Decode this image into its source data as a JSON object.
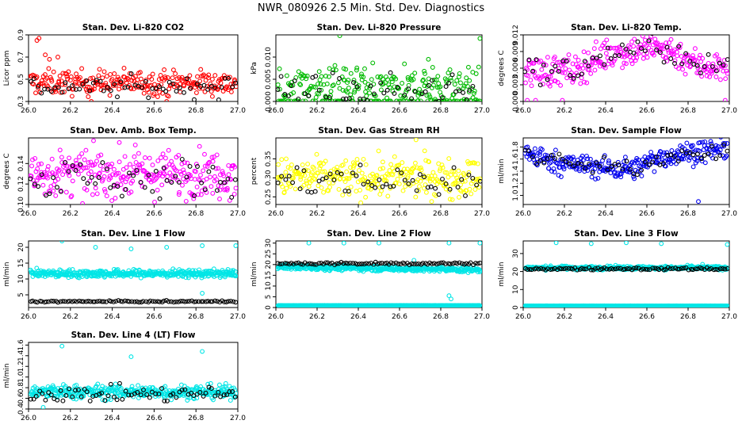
{
  "page": {
    "title": "NWR_080926  2.5 Min. Std. Dev. Diagnostics"
  },
  "colors": {
    "axis": "#000000",
    "red": "#ff0000",
    "green": "#00bb00",
    "magenta": "#ff00ff",
    "yellow": "#ffff00",
    "blue": "#0000ee",
    "cyan": "#00e6e6",
    "black_points": "#000000"
  },
  "chart_data": [
    {
      "type": "scatter",
      "title": "Stan. Dev. Li-820 CO2",
      "ylabel": "Licor ppm",
      "xlim": [
        26.0,
        27.0
      ],
      "ylim": [
        0.3,
        0.9
      ],
      "xticks": [
        26.0,
        26.2,
        26.4,
        26.6,
        26.8,
        27.0
      ],
      "xtick_labels": [
        "26.0",
        "26.2",
        "26.4",
        "26.6",
        "26.8",
        "27.0"
      ],
      "yticks": [
        0.3,
        0.5,
        0.7,
        0.9
      ],
      "ytick_labels": [
        "0.3",
        "0.5",
        "0.7",
        "0.9"
      ],
      "color": "red",
      "series": [
        {
          "name": "colored",
          "color": "red",
          "density": 260,
          "base": 0.47,
          "spread": 0.055,
          "outliers": [
            [
              26.04,
              0.85
            ],
            [
              26.05,
              0.87
            ],
            [
              26.08,
              0.72
            ],
            [
              26.14,
              0.7
            ],
            [
              26.1,
              0.68
            ],
            [
              26.3,
              0.3
            ],
            [
              26.66,
              0.3
            ]
          ]
        },
        {
          "name": "black",
          "color": "black_points",
          "density": 60,
          "base": 0.43,
          "spread": 0.045,
          "outliers": []
        }
      ]
    },
    {
      "type": "scatter",
      "title": "Stan. Dev. Li-820 Pressure",
      "ylabel": "kPa",
      "xlim": [
        26.0,
        27.0
      ],
      "ylim": [
        0.0,
        0.015
      ],
      "xticks": [
        26.0,
        26.2,
        26.4,
        26.6,
        26.8,
        27.0
      ],
      "xtick_labels": [
        "26.0",
        "26.2",
        "26.4",
        "26.6",
        "26.8",
        "27.0"
      ],
      "yticks": [
        0.0,
        0.005,
        0.01
      ],
      "ytick_labels": [
        "0.000",
        "0.005",
        "0.010"
      ],
      "color": "green",
      "series": [
        {
          "name": "colored",
          "color": "green",
          "density": 300,
          "base": 0.0035,
          "spread": 0.0022,
          "band_low": 0.0001,
          "outliers": [
            [
              26.31,
              0.0148
            ],
            [
              26.74,
              0.0095
            ],
            [
              26.99,
              0.0142
            ]
          ]
        },
        {
          "name": "black",
          "color": "black_points",
          "density": 60,
          "base": 0.002,
          "spread": 0.0018,
          "outliers": []
        }
      ]
    },
    {
      "type": "scatter",
      "title": "Stan. Dev. Li-820 Temp.",
      "ylabel": "degrees C",
      "xlim": [
        26.0,
        27.0
      ],
      "ylim": [
        0.0,
        0.012
      ],
      "xticks": [
        26.0,
        26.2,
        26.4,
        26.6,
        26.8,
        27.0
      ],
      "xtick_labels": [
        "26.0",
        "26.2",
        "26.4",
        "26.6",
        "26.8",
        "27.0"
      ],
      "yticks": [
        0.0,
        0.003,
        0.006,
        0.009,
        0.012
      ],
      "ytick_labels": [
        "0.000",
        "0.003",
        "0.006",
        "0.009",
        "0.012"
      ],
      "color": "magenta",
      "trend": [
        [
          26.0,
          0.0055
        ],
        [
          26.25,
          0.0055
        ],
        [
          26.4,
          0.0085
        ],
        [
          26.6,
          0.0095
        ],
        [
          26.7,
          0.0095
        ],
        [
          26.85,
          0.0065
        ],
        [
          27.0,
          0.006
        ]
      ],
      "series": [
        {
          "name": "colored",
          "color": "magenta",
          "density": 280,
          "spread": 0.0014,
          "outliers": [
            [
              26.02,
              0.0002
            ],
            [
              26.06,
              0.0002
            ],
            [
              26.19,
              0.0002
            ],
            [
              26.98,
              0.0002
            ]
          ]
        },
        {
          "name": "black",
          "color": "black_points",
          "density": 55,
          "spread": 0.0012,
          "outliers": []
        }
      ]
    },
    {
      "type": "scatter",
      "title": "Stan. Dev. Amb. Box Temp.",
      "ylabel": "degrees C",
      "xlim": [
        26.0,
        27.0
      ],
      "ylim": [
        0.1,
        0.165
      ],
      "xticks": [
        26.0,
        26.2,
        26.4,
        26.6,
        26.8,
        27.0
      ],
      "xtick_labels": [
        "26.0",
        "26.2",
        "26.4",
        "26.6",
        "26.8",
        "27.0"
      ],
      "yticks": [
        0.1,
        0.12,
        0.14
      ],
      "ytick_labels": [
        "0.10",
        "0.12",
        "0.14"
      ],
      "color": "magenta",
      "series": [
        {
          "name": "colored",
          "color": "magenta",
          "density": 300,
          "base": 0.13,
          "spread": 0.011,
          "outliers": []
        },
        {
          "name": "black",
          "color": "black_points",
          "density": 55,
          "base": 0.125,
          "spread": 0.01,
          "outliers": []
        }
      ]
    },
    {
      "type": "scatter",
      "title": "Stan. Dev. Gas Stream RH",
      "ylabel": "percent",
      "xlim": [
        26.0,
        27.0
      ],
      "ylim": [
        0.23,
        0.405
      ],
      "xticks": [
        26.0,
        26.2,
        26.4,
        26.6,
        26.8,
        27.0
      ],
      "xtick_labels": [
        "26.0",
        "26.2",
        "26.4",
        "26.6",
        "26.8",
        "27.0"
      ],
      "yticks": [
        0.25,
        0.3,
        0.35
      ],
      "ytick_labels": [
        "0.25",
        "0.30",
        "0.35"
      ],
      "color": "yellow",
      "series": [
        {
          "name": "colored",
          "color": "yellow",
          "density": 300,
          "base": 0.3,
          "spread": 0.025,
          "outliers": [
            [
              26.68,
              0.4
            ]
          ]
        },
        {
          "name": "black",
          "color": "black_points",
          "density": 55,
          "base": 0.29,
          "spread": 0.022,
          "outliers": []
        }
      ]
    },
    {
      "type": "scatter",
      "title": "Stan. Dev. Sample Flow",
      "ylabel": "ml/min",
      "xlim": [
        26.0,
        27.0
      ],
      "ylim": [
        0.85,
        1.95
      ],
      "xticks": [
        26.0,
        26.2,
        26.4,
        26.6,
        26.8,
        27.0
      ],
      "xtick_labels": [
        "26.0",
        "26.2",
        "26.4",
        "26.6",
        "26.8",
        "27.0"
      ],
      "yticks": [
        1.0,
        1.2,
        1.4,
        1.6,
        1.8
      ],
      "ytick_labels": [
        "1.0",
        "1.2",
        "1.4",
        "1.6",
        "1.8"
      ],
      "color": "blue",
      "trend": [
        [
          26.0,
          1.72
        ],
        [
          26.15,
          1.55
        ],
        [
          26.4,
          1.45
        ],
        [
          26.55,
          1.45
        ],
        [
          26.65,
          1.62
        ],
        [
          26.8,
          1.7
        ],
        [
          27.0,
          1.78
        ]
      ],
      "series": [
        {
          "name": "colored",
          "color": "blue",
          "density": 300,
          "spread": 0.09,
          "outliers": [
            [
              26.85,
              0.9
            ]
          ]
        },
        {
          "name": "black",
          "color": "black_points",
          "density": 55,
          "spread": 0.07,
          "outliers": []
        }
      ]
    },
    {
      "type": "scatter",
      "title": "Stan. Dev. Line 1 Flow",
      "ylabel": "ml/min",
      "xlim": [
        26.0,
        27.0
      ],
      "ylim": [
        1.0,
        22.0
      ],
      "xticks": [
        26.0,
        26.2,
        26.4,
        26.6,
        26.8,
        27.0
      ],
      "xtick_labels": [
        "26.0",
        "26.2",
        "26.4",
        "26.6",
        "26.8",
        "27.0"
      ],
      "yticks": [
        5,
        10,
        15,
        20
      ],
      "ytick_labels": [
        "5",
        "10",
        "15",
        "20"
      ],
      "color": "cyan",
      "series": [
        {
          "name": "colored",
          "color": "cyan",
          "density": 420,
          "base": 11.7,
          "spread": 0.6,
          "outliers": [
            [
              26.16,
              22.0
            ],
            [
              26.32,
              20.0
            ],
            [
              26.49,
              19.5
            ],
            [
              26.66,
              20.0
            ],
            [
              26.83,
              20.5
            ],
            [
              26.99,
              20.5
            ],
            [
              26.83,
              5.5
            ]
          ]
        },
        {
          "name": "black",
          "color": "black_points",
          "density": 90,
          "base": 2.9,
          "spread": 0.12,
          "outliers": []
        }
      ]
    },
    {
      "type": "scatter",
      "title": "Stan. Dev. Line 2 Flow",
      "ylabel": "ml/min",
      "xlim": [
        26.0,
        27.0
      ],
      "ylim": [
        0.0,
        31.0
      ],
      "xticks": [
        26.0,
        26.2,
        26.4,
        26.6,
        26.8,
        27.0
      ],
      "xtick_labels": [
        "26.0",
        "26.2",
        "26.4",
        "26.6",
        "26.8",
        "27.0"
      ],
      "yticks": [
        0,
        5,
        10,
        15,
        20,
        25,
        30
      ],
      "ytick_labels": [
        "0",
        "5",
        "10",
        "15",
        "20",
        "25",
        "30"
      ],
      "color": "cyan",
      "trend": [
        [
          26.0,
          19.0
        ],
        [
          27.0,
          17.5
        ]
      ],
      "series": [
        {
          "name": "colored",
          "color": "cyan",
          "density": 420,
          "spread": 0.6,
          "low_band": 1.0,
          "outliers": [
            [
              26.16,
              30.0
            ],
            [
              26.33,
              30.0
            ],
            [
              26.5,
              30.0
            ],
            [
              26.67,
              22.0
            ],
            [
              26.84,
              30.0
            ],
            [
              26.99,
              30.0
            ],
            [
              26.84,
              5.5
            ],
            [
              26.85,
              4.0
            ]
          ]
        },
        {
          "name": "black",
          "color": "black_points",
          "density": 90,
          "base": 20.5,
          "spread": 0.3,
          "outliers": []
        }
      ]
    },
    {
      "type": "scatter",
      "title": "Stan. Dev. Line 3 Flow",
      "ylabel": "ml/min",
      "xlim": [
        26.0,
        27.0
      ],
      "ylim": [
        0.0,
        37.0
      ],
      "xticks": [
        26.0,
        26.2,
        26.4,
        26.6,
        26.8,
        27.0
      ],
      "xtick_labels": [
        "26.0",
        "26.2",
        "26.4",
        "26.6",
        "26.8",
        "27.0"
      ],
      "yticks": [
        0,
        10,
        20,
        30
      ],
      "ytick_labels": [
        "0",
        "10",
        "20",
        "30"
      ],
      "color": "cyan",
      "series": [
        {
          "name": "colored",
          "color": "cyan",
          "density": 420,
          "base": 22.0,
          "spread": 0.5,
          "low_band": 1.0,
          "outliers": [
            [
              26.16,
              36.0
            ],
            [
              26.33,
              35.5
            ],
            [
              26.5,
              36.0
            ],
            [
              26.67,
              35.5
            ],
            [
              26.99,
              35.0
            ],
            [
              26.87,
              24.0
            ]
          ]
        },
        {
          "name": "black",
          "color": "black_points",
          "density": 90,
          "base": 21.5,
          "spread": 0.35,
          "outliers": []
        }
      ]
    },
    {
      "type": "scatter",
      "title": "Stan. Dev. Line 4 (LT) Flow",
      "ylabel": "ml/min",
      "xlim": [
        26.0,
        27.0
      ],
      "ylim": [
        0.4,
        1.65
      ],
      "xticks": [
        26.0,
        26.2,
        26.4,
        26.6,
        26.8,
        27.0
      ],
      "xtick_labels": [
        "26.0",
        "26.2",
        "26.4",
        "26.6",
        "26.8",
        "27.0"
      ],
      "yticks": [
        0.4,
        0.6,
        0.8,
        1.0,
        1.2,
        1.4,
        1.6
      ],
      "ytick_labels": [
        "0.4",
        "0.6",
        "0.8",
        "1.0",
        "1.2",
        "1.4",
        "1.6"
      ],
      "color": "cyan",
      "series": [
        {
          "name": "colored",
          "color": "cyan",
          "density": 380,
          "base": 0.72,
          "spread": 0.065,
          "outliers": [
            [
              26.16,
              1.58
            ],
            [
              26.49,
              1.38
            ],
            [
              26.83,
              1.48
            ],
            [
              26.07,
              0.43
            ]
          ]
        },
        {
          "name": "black",
          "color": "black_points",
          "density": 70,
          "base": 0.68,
          "spread": 0.07,
          "outliers": []
        }
      ]
    }
  ]
}
